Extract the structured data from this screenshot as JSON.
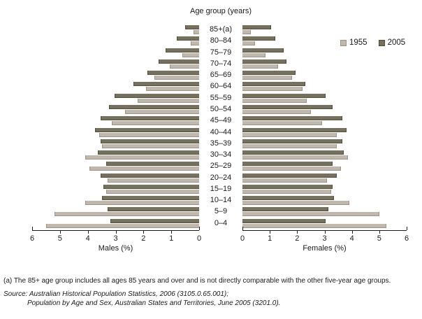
{
  "legend": {
    "items": [
      {
        "label": "1955",
        "color": "#c0b7ad"
      },
      {
        "label": "2005",
        "color": "#76705e"
      }
    ]
  },
  "footnotes": {
    "note_a": "(a) The 85+ age group includes all ages 85 years and over and is not directly comparable with the other five-year age groups.",
    "source_line1": "Source: Australian Historical Population Statistics, 2006 (3105.0.65.001);",
    "source_line2": "Population by Age and Sex, Australian States and Territories, June 2005 (3201.0)."
  },
  "chart_data": {
    "type": "bar",
    "subtype": "population-pyramid",
    "title": "Age group (years)",
    "xlabel_left": "Males (%)",
    "xlabel_right": "Females (%)",
    "axis_max": 6,
    "ticks_left": [
      6,
      5,
      4,
      3,
      2,
      1,
      0
    ],
    "ticks_right": [
      0,
      1,
      2,
      3,
      4,
      5,
      6
    ],
    "grid": false,
    "legend_position": "top-right",
    "age_groups": [
      "85+(a)",
      "80–84",
      "75–79",
      "70–74",
      "65–69",
      "60–64",
      "55–59",
      "50–54",
      "45–49",
      "40–44",
      "35–39",
      "30–34",
      "25–29",
      "20–24",
      "15–19",
      "10–14",
      "5–9",
      "0–4"
    ],
    "series": [
      {
        "name": "2005",
        "color": "#76705e",
        "edge_color": "#524d3c",
        "males": [
          0.5,
          0.8,
          1.2,
          1.45,
          1.85,
          2.35,
          3.05,
          3.25,
          3.55,
          3.75,
          3.55,
          3.65,
          3.35,
          3.55,
          3.45,
          3.5,
          3.3,
          3.2
        ],
        "females": [
          1.05,
          1.2,
          1.5,
          1.6,
          1.95,
          2.3,
          3.05,
          3.3,
          3.65,
          3.8,
          3.65,
          3.7,
          3.3,
          3.45,
          3.3,
          3.35,
          3.15,
          3.05
        ]
      },
      {
        "name": "1955",
        "color": "#c0b7ad",
        "edge_color": "#9d9386",
        "males": [
          0.2,
          0.3,
          0.6,
          1.05,
          1.6,
          1.9,
          2.2,
          2.65,
          3.15,
          3.6,
          3.5,
          4.1,
          3.95,
          3.3,
          3.35,
          4.1,
          5.2,
          5.5
        ],
        "females": [
          0.3,
          0.45,
          0.85,
          1.3,
          1.8,
          2.2,
          2.35,
          2.5,
          2.9,
          3.45,
          3.45,
          3.85,
          3.6,
          3.1,
          3.25,
          3.9,
          5.0,
          5.25
        ]
      }
    ]
  }
}
